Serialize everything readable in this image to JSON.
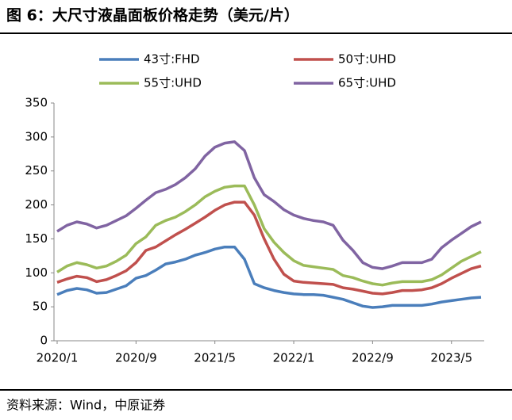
{
  "chart_data": {
    "type": "line",
    "title": "图 6：大尺寸液晶面板价格走势（美元/片）",
    "source": "资料来源：Wind，中原证券",
    "categories": [
      "2020/1",
      null,
      null,
      null,
      null,
      null,
      null,
      null,
      "2020/9",
      null,
      null,
      null,
      null,
      null,
      null,
      null,
      "2021/5",
      null,
      null,
      null,
      null,
      null,
      null,
      null,
      "2022/1",
      null,
      null,
      null,
      null,
      null,
      null,
      null,
      "2022/9",
      null,
      null,
      null,
      null,
      null,
      null,
      null,
      "2023/5",
      null,
      null,
      null
    ],
    "series": [
      {
        "name": "43寸:FHD",
        "color": "#4a7ebb",
        "values": [
          68,
          74,
          77,
          75,
          70,
          71,
          76,
          81,
          92,
          96,
          104,
          113,
          116,
          120,
          126,
          130,
          135,
          138,
          138,
          120,
          84,
          78,
          74,
          71,
          69,
          68,
          68,
          67,
          64,
          61,
          56,
          51,
          49,
          50,
          52,
          52,
          52,
          52,
          54,
          57,
          59,
          61,
          63,
          64
        ]
      },
      {
        "name": "50寸:UHD",
        "color": "#c0504d",
        "values": [
          86,
          91,
          95,
          93,
          87,
          90,
          96,
          103,
          115,
          133,
          138,
          147,
          156,
          164,
          173,
          182,
          192,
          200,
          204,
          204,
          185,
          150,
          120,
          98,
          88,
          86,
          85,
          84,
          83,
          78,
          76,
          73,
          70,
          69,
          71,
          74,
          74,
          75,
          78,
          84,
          92,
          99,
          106,
          110
        ]
      },
      {
        "name": "55寸:UHD",
        "color": "#9bbb59",
        "values": [
          101,
          110,
          115,
          112,
          107,
          110,
          117,
          126,
          143,
          153,
          170,
          177,
          182,
          190,
          200,
          212,
          220,
          226,
          228,
          228,
          200,
          165,
          145,
          130,
          118,
          111,
          109,
          107,
          105,
          96,
          93,
          88,
          84,
          82,
          85,
          87,
          87,
          87,
          90,
          97,
          107,
          117,
          124,
          131
        ]
      },
      {
        "name": "65寸:UHD",
        "color": "#8064a2",
        "values": [
          161,
          170,
          175,
          172,
          166,
          170,
          177,
          184,
          195,
          207,
          218,
          223,
          230,
          240,
          253,
          272,
          285,
          291,
          293,
          280,
          240,
          215,
          205,
          193,
          185,
          180,
          177,
          175,
          170,
          148,
          133,
          115,
          108,
          106,
          110,
          115,
          115,
          115,
          120,
          137,
          148,
          158,
          168,
          175
        ]
      }
    ],
    "ylim": [
      0,
      350
    ],
    "yticks": [
      0,
      50,
      100,
      150,
      200,
      250,
      300,
      350
    ],
    "grid": false
  }
}
